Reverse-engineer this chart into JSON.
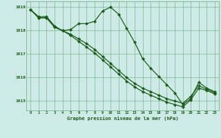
{
  "title": "Graphe pression niveau de la mer (hPa)",
  "background_color": "#ceeae6",
  "grid_color": "#6aaa7a",
  "line_color": "#1a5c1a",
  "xlim": [
    -0.5,
    23.5
  ],
  "ylim": [
    1014.6,
    1019.25
  ],
  "yticks": [
    1015,
    1016,
    1017,
    1018,
    1019
  ],
  "xticks": [
    0,
    1,
    2,
    3,
    4,
    5,
    6,
    7,
    8,
    9,
    10,
    11,
    12,
    13,
    14,
    15,
    16,
    17,
    18,
    19,
    20,
    21,
    22,
    23
  ],
  "series": [
    [
      1018.9,
      1018.6,
      1018.6,
      1018.2,
      1018.0,
      1018.05,
      1018.3,
      1018.3,
      1018.4,
      1018.85,
      1019.0,
      1018.7,
      1018.1,
      1017.5,
      1016.8,
      1016.4,
      1016.05,
      1015.7,
      1015.35,
      1014.85,
      1015.1,
      1015.8,
      1015.55,
      1015.4
    ],
    [
      1018.9,
      1018.55,
      1018.55,
      1018.15,
      1018.0,
      1017.85,
      1017.65,
      1017.45,
      1017.2,
      1016.9,
      1016.6,
      1016.3,
      1016.0,
      1015.75,
      1015.55,
      1015.4,
      1015.25,
      1015.1,
      1015.0,
      1014.9,
      1015.2,
      1015.65,
      1015.5,
      1015.35
    ],
    [
      1018.9,
      1018.55,
      1018.55,
      1018.15,
      1018.0,
      1017.8,
      1017.55,
      1017.3,
      1017.05,
      1016.75,
      1016.45,
      1016.15,
      1015.85,
      1015.6,
      1015.4,
      1015.25,
      1015.1,
      1014.95,
      1014.85,
      1014.75,
      1015.05,
      1015.55,
      1015.45,
      1015.3
    ]
  ],
  "figsize": [
    3.2,
    2.0
  ],
  "dpi": 100
}
